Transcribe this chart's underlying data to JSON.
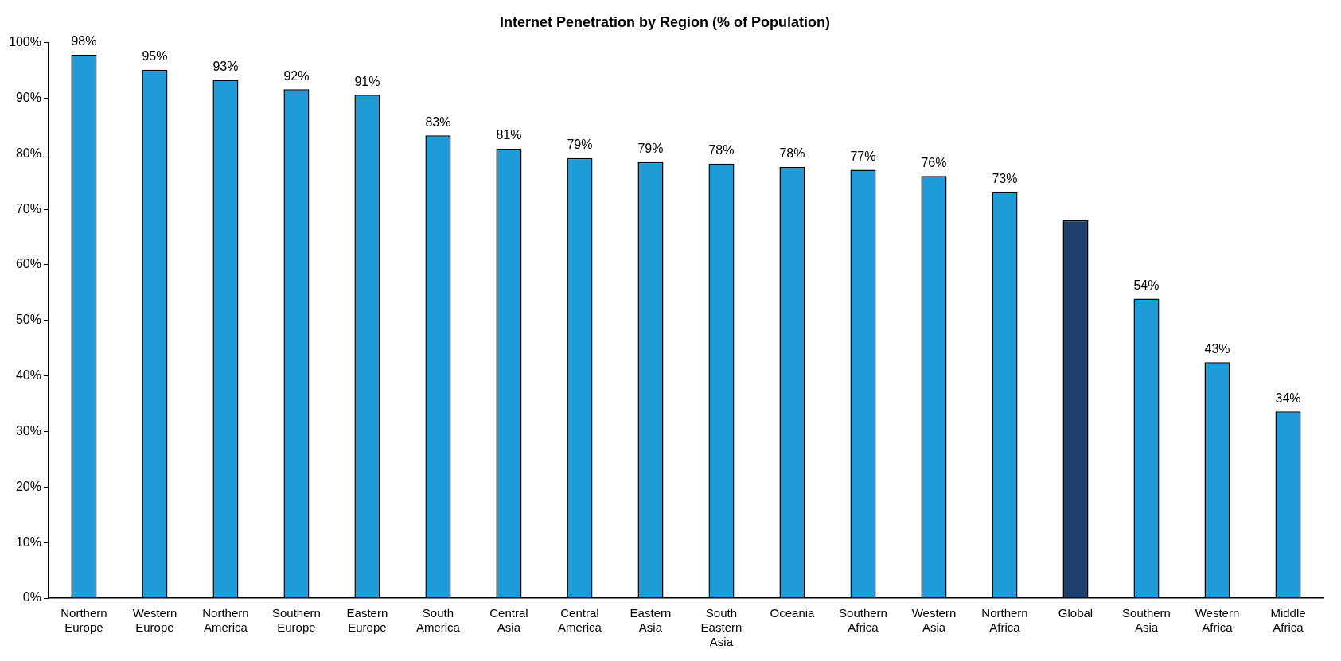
{
  "chart_data": {
    "type": "bar",
    "title": "Internet Penetration by Region (% of Population)",
    "categories": [
      "Northern Europe",
      "Western Europe",
      "Northern America",
      "Southern Europe",
      "Eastern Europe",
      "South America",
      "Central Asia",
      "Central America",
      "Eastern Asia",
      "South Eastern Asia",
      "Oceania",
      "Southern Africa",
      "Western Asia",
      "Northern Africa",
      "Global",
      "Southern Asia",
      "Western Africa",
      "Middle Africa"
    ],
    "values": [
      97.8,
      95.1,
      93.3,
      91.6,
      90.6,
      83.3,
      80.9,
      79.2,
      78.5,
      78.2,
      77.6,
      77.1,
      76.0,
      73.1,
      68.0,
      53.9,
      42.5,
      33.6
    ],
    "colors": [
      "#1f9bd7",
      "#1f9bd7",
      "#1f9bd7",
      "#1f9bd7",
      "#1f9bd7",
      "#1f9bd7",
      "#1f9bd7",
      "#1f9bd7",
      "#1f9bd7",
      "#1f9bd7",
      "#1f9bd7",
      "#1f9bd7",
      "#1f9bd7",
      "#1f9bd7",
      "#1f3f6e",
      "#1f9bd7",
      "#1f9bd7",
      "#1f9bd7"
    ],
    "value_labels": [
      "98%",
      "95%",
      "93%",
      "92%",
      "91%",
      "83%",
      "81%",
      "79%",
      "79%",
      "78%",
      "78%",
      "77%",
      "76%",
      "73%",
      null,
      "54%",
      "43%",
      "34%"
    ],
    "ylim": [
      0,
      100
    ],
    "yticks": [
      {
        "value": 0,
        "label": "0%"
      },
      {
        "value": 10,
        "label": "10%"
      },
      {
        "value": 20,
        "label": "20%"
      },
      {
        "value": 30,
        "label": "30%"
      },
      {
        "value": 40,
        "label": "40%"
      },
      {
        "value": 50,
        "label": "50%"
      },
      {
        "value": 60,
        "label": "60%"
      },
      {
        "value": 70,
        "label": "70%"
      },
      {
        "value": 80,
        "label": "80%"
      },
      {
        "value": 90,
        "label": "90%"
      },
      {
        "value": 100,
        "label": "100%"
      }
    ],
    "grid": false,
    "legend": false
  }
}
